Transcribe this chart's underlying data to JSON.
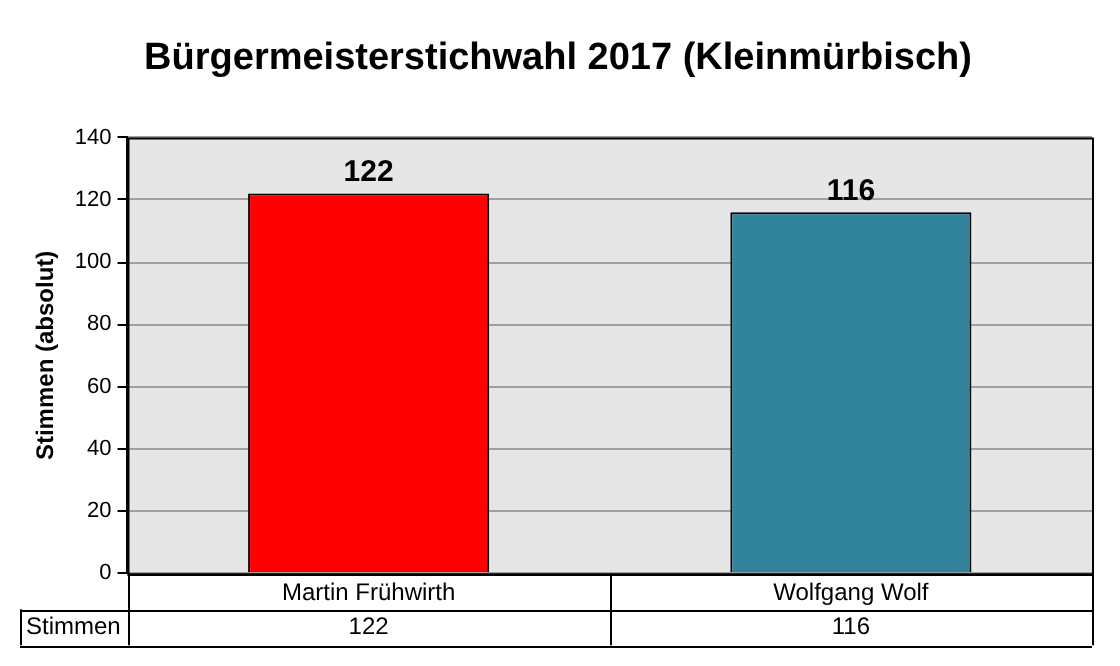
{
  "chart_data": {
    "type": "bar",
    "title": "Bürgermeisterstichwahl 2017 (Kleinmürbisch)",
    "ylabel": "Stimmen (absolut)",
    "categories": [
      "Martin Frühwirth",
      "Wolfgang Wolf"
    ],
    "series": [
      {
        "name": "Stimmen",
        "values": [
          122,
          116
        ],
        "colors": [
          "#ff0000",
          "#31849b"
        ]
      }
    ],
    "ylim": [
      0,
      140
    ],
    "yticks": [
      0,
      20,
      40,
      60,
      80,
      100,
      120,
      140
    ],
    "grid": "y",
    "data_labels": true,
    "annotations": [
      {
        "text": "122",
        "x": "Martin Frühwirth",
        "y": 122
      },
      {
        "text": "116",
        "x": "Wolfgang Wolf",
        "y": 116
      }
    ],
    "legend": false
  }
}
